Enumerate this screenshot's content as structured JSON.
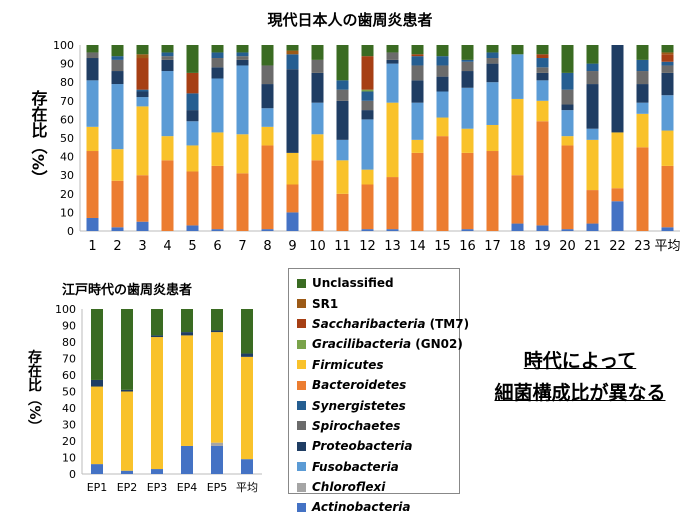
{
  "top": {
    "title": "現代日本人の歯周炎患者",
    "ylabel": "存在比（%）"
  },
  "bottom": {
    "title": "江戸時代の歯周炎患者",
    "ylabel": "存在比（%）"
  },
  "note": {
    "line1": "時代によって",
    "line2": "細菌構成比が異なる"
  },
  "legend": [
    {
      "key": "unclassified",
      "label": "Unclassified",
      "italic_part": "",
      "suffix": "",
      "color": "#3a6b22"
    },
    {
      "key": "sr1",
      "label": "SR1",
      "italic_part": "",
      "suffix": "",
      "color": "#9c5a17"
    },
    {
      "key": "saccharibacteria",
      "label": "",
      "italic_part": "Saccharibacteria",
      "suffix": " (TM7)",
      "color": "#a63f14"
    },
    {
      "key": "gracilibacteria",
      "label": "",
      "italic_part": "Gracilibacteria",
      "suffix": " (GN02)",
      "color": "#7aa34a"
    },
    {
      "key": "firmicutes",
      "label": "",
      "italic_part": "Firmicutes",
      "suffix": "",
      "color": "#f9c22b"
    },
    {
      "key": "bacteroidetes",
      "label": "",
      "italic_part": "Bacteroidetes",
      "suffix": "",
      "color": "#ec7d31"
    },
    {
      "key": "synergistetes",
      "label": "",
      "italic_part": "Synergistetes",
      "suffix": "",
      "color": "#255e91"
    },
    {
      "key": "spirochaetes",
      "label": "",
      "italic_part": "Spirochaetes",
      "suffix": "",
      "color": "#6b6b6b"
    },
    {
      "key": "proteobacteria",
      "label": "",
      "italic_part": "Proteobacteria",
      "suffix": "",
      "color": "#1f3d63"
    },
    {
      "key": "fusobacteria",
      "label": "",
      "italic_part": "Fusobacteria",
      "suffix": "",
      "color": "#5b9bd5"
    },
    {
      "key": "chloroflexi",
      "label": "",
      "italic_part": "Chloroflexi",
      "suffix": "",
      "color": "#a5a5a5"
    },
    {
      "key": "actinobacteria",
      "label": "",
      "italic_part": "Actinobacteria",
      "suffix": "",
      "color": "#4472c4"
    }
  ],
  "chart_data": [
    {
      "type": "bar",
      "stacked": true,
      "title": "現代日本人の歯周炎患者",
      "ylabel": "存在比（%）",
      "ylim": [
        0,
        100
      ],
      "yticks": [
        0,
        10,
        20,
        30,
        40,
        50,
        60,
        70,
        80,
        90,
        100
      ],
      "categories": [
        "1",
        "2",
        "3",
        "4",
        "5",
        "6",
        "7",
        "8",
        "9",
        "10",
        "11",
        "12",
        "13",
        "14",
        "15",
        "16",
        "17",
        "18",
        "19",
        "20",
        "21",
        "22",
        "23",
        "平均"
      ],
      "series": [
        {
          "name": "Actinobacteria",
          "color": "#4472c4",
          "values": [
            7,
            2,
            5,
            0,
            3,
            1,
            0,
            1,
            10,
            0,
            0,
            1,
            1,
            0,
            0,
            1,
            0,
            4,
            3,
            1,
            4,
            16,
            0,
            2
          ]
        },
        {
          "name": "Chloroflexi",
          "color": "#a5a5a5",
          "values": [
            0,
            0,
            0,
            0,
            0,
            0,
            0,
            0,
            0,
            0,
            0,
            0,
            0,
            0,
            0,
            0,
            0,
            0,
            0,
            0,
            0,
            0,
            0,
            0
          ]
        },
        {
          "name": "Bacteroidetes",
          "color": "#ec7d31",
          "values": [
            36,
            25,
            25,
            38,
            29,
            34,
            31,
            45,
            15,
            38,
            20,
            24,
            28,
            42,
            51,
            41,
            43,
            26,
            56,
            45,
            18,
            7,
            45,
            33
          ]
        },
        {
          "name": "Firmicutes",
          "color": "#f9c22b",
          "values": [
            13,
            17,
            37,
            13,
            14,
            18,
            21,
            10,
            17,
            14,
            18,
            8,
            40,
            7,
            10,
            13,
            14,
            41,
            11,
            5,
            27,
            30,
            18,
            19
          ]
        },
        {
          "name": "Fusobacteria",
          "color": "#5b9bd5",
          "values": [
            25,
            35,
            5,
            35,
            13,
            29,
            37,
            10,
            0,
            17,
            11,
            27,
            21,
            20,
            14,
            22,
            23,
            24,
            11,
            14,
            6,
            0,
            6,
            19
          ]
        },
        {
          "name": "Proteobacteria",
          "color": "#1f3d63",
          "values": [
            12,
            7,
            3,
            6,
            6,
            6,
            3,
            13,
            45,
            16,
            21,
            5,
            2,
            12,
            8,
            9,
            10,
            0,
            4,
            3,
            24,
            47,
            10,
            12
          ]
        },
        {
          "name": "Spirochaetes",
          "color": "#6b6b6b",
          "values": [
            3,
            6,
            0,
            2,
            0,
            5,
            2,
            10,
            0,
            7,
            6,
            5,
            4,
            8,
            6,
            5,
            3,
            0,
            3,
            8,
            7,
            0,
            7,
            4
          ]
        },
        {
          "name": "Synergistetes",
          "color": "#255e91",
          "values": [
            0,
            2,
            1,
            2,
            9,
            3,
            2,
            0,
            8,
            0,
            5,
            5,
            0,
            5,
            5,
            1,
            3,
            0,
            5,
            9,
            4,
            0,
            6,
            2
          ]
        },
        {
          "name": "Gracilibacteria (GN02)",
          "color": "#7aa34a",
          "values": [
            0,
            0,
            0,
            0,
            0,
            0,
            0,
            0,
            0,
            0,
            0,
            1,
            0,
            0,
            0,
            0,
            0,
            0,
            0,
            0,
            0,
            0,
            0,
            0
          ]
        },
        {
          "name": "Saccharibacteria (TM7)",
          "color": "#a63f14",
          "values": [
            0,
            0,
            17,
            0,
            11,
            0,
            0,
            0,
            0,
            0,
            0,
            18,
            0,
            1,
            0,
            0,
            0,
            0,
            2,
            0,
            0,
            0,
            0,
            4
          ]
        },
        {
          "name": "SR1",
          "color": "#9c5a17",
          "values": [
            0,
            0,
            2,
            0,
            0,
            0,
            0,
            0,
            2,
            0,
            0,
            0,
            0,
            0,
            0,
            0,
            0,
            0,
            0,
            0,
            0,
            0,
            0,
            1
          ]
        },
        {
          "name": "Unclassified",
          "color": "#3a6b22",
          "values": [
            4,
            6,
            5,
            4,
            15,
            4,
            4,
            11,
            3,
            8,
            19,
            6,
            4,
            5,
            6,
            8,
            4,
            5,
            5,
            15,
            10,
            0,
            8,
            4
          ]
        }
      ]
    },
    {
      "type": "bar",
      "stacked": true,
      "title": "江戸時代の歯周炎患者",
      "ylabel": "存在比（%）",
      "ylim": [
        0,
        100
      ],
      "yticks": [
        0,
        10,
        20,
        30,
        40,
        50,
        60,
        70,
        80,
        90,
        100
      ],
      "categories": [
        "EP1",
        "EP2",
        "EP3",
        "EP4",
        "EP5",
        "平均"
      ],
      "series": [
        {
          "name": "Actinobacteria",
          "color": "#4472c4",
          "values": [
            6,
            2,
            3,
            17,
            17,
            9
          ]
        },
        {
          "name": "Chloroflexi",
          "color": "#a5a5a5",
          "values": [
            0,
            0,
            0,
            0,
            2,
            0
          ]
        },
        {
          "name": "Bacteroidetes",
          "color": "#ec7d31",
          "values": [
            0,
            0,
            0,
            0,
            0,
            0
          ]
        },
        {
          "name": "Firmicutes",
          "color": "#f9c22b",
          "values": [
            47,
            48,
            80,
            67,
            67,
            62
          ]
        },
        {
          "name": "Fusobacteria",
          "color": "#5b9bd5",
          "values": [
            0,
            0,
            0,
            0,
            0,
            0
          ]
        },
        {
          "name": "Proteobacteria",
          "color": "#1f3d63",
          "values": [
            4,
            1,
            1,
            2,
            1,
            2
          ]
        },
        {
          "name": "Spirochaetes",
          "color": "#6b6b6b",
          "values": [
            0,
            0,
            0,
            0,
            0,
            0
          ]
        },
        {
          "name": "Synergistetes",
          "color": "#255e91",
          "values": [
            0,
            0,
            0,
            0,
            0,
            0
          ]
        },
        {
          "name": "Gracilibacteria (GN02)",
          "color": "#7aa34a",
          "values": [
            0,
            0,
            0,
            0,
            0,
            0
          ]
        },
        {
          "name": "Saccharibacteria (TM7)",
          "color": "#a63f14",
          "values": [
            0,
            0,
            0,
            0,
            0,
            0
          ]
        },
        {
          "name": "SR1",
          "color": "#9c5a17",
          "values": [
            0,
            0,
            0,
            0,
            0,
            0
          ]
        },
        {
          "name": "Unclassified",
          "color": "#3a6b22",
          "values": [
            43,
            49,
            16,
            14,
            13,
            27
          ]
        }
      ]
    }
  ]
}
